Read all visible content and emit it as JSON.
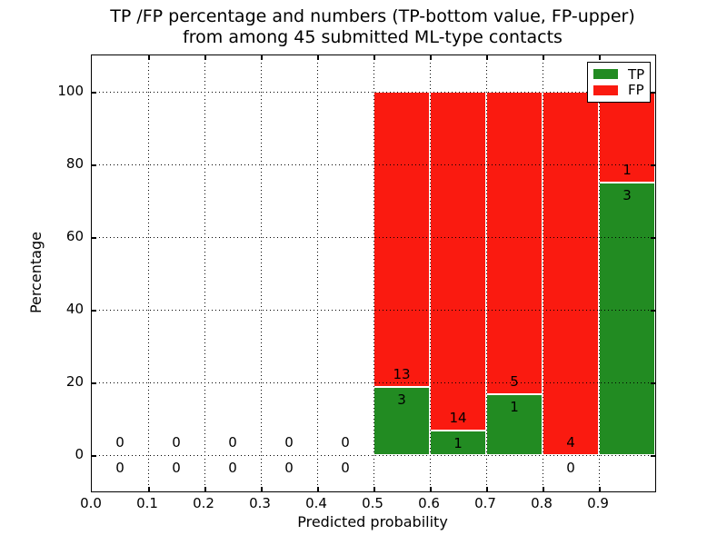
{
  "figure": {
    "title_line1": "TP /FP percentage and numbers (TP-bottom value, FP-upper)",
    "title_line2": "from among 45 submitted ML-type contacts",
    "background": "#ffffff"
  },
  "chart_data": {
    "type": "bar",
    "stacked": true,
    "normalized_to_percent": true,
    "title": "TP /FP percentage and numbers (TP-bottom value, FP-upper)\nfrom among 45 submitted ML-type contacts",
    "xlabel": "Predicted probability",
    "ylabel": "Percentage",
    "xlim": [
      0.0,
      1.0
    ],
    "ylim": [
      -10,
      110
    ],
    "xticks": [
      "0.0",
      "0.1",
      "0.2",
      "0.3",
      "0.4",
      "0.5",
      "0.6",
      "0.7",
      "0.8",
      "0.9"
    ],
    "yticks": [
      "0",
      "20",
      "40",
      "60",
      "80",
      "100"
    ],
    "grid": "dotted black, horizontal at y ticks and vertical at x ticks",
    "total_contacts": 45,
    "bin_width": 0.1,
    "bins": [
      {
        "x_range": [
          0.0,
          0.1
        ],
        "tp": 0,
        "fp": 0,
        "tp_pct": 0
      },
      {
        "x_range": [
          0.1,
          0.2
        ],
        "tp": 0,
        "fp": 0,
        "tp_pct": 0
      },
      {
        "x_range": [
          0.2,
          0.3
        ],
        "tp": 0,
        "fp": 0,
        "tp_pct": 0
      },
      {
        "x_range": [
          0.3,
          0.4
        ],
        "tp": 0,
        "fp": 0,
        "tp_pct": 0
      },
      {
        "x_range": [
          0.4,
          0.5
        ],
        "tp": 0,
        "fp": 0,
        "tp_pct": 0
      },
      {
        "x_range": [
          0.5,
          0.6
        ],
        "tp": 3,
        "fp": 13,
        "tp_pct": 18.75
      },
      {
        "x_range": [
          0.6,
          0.7
        ],
        "tp": 1,
        "fp": 14,
        "tp_pct": 6.67
      },
      {
        "x_range": [
          0.7,
          0.8
        ],
        "tp": 1,
        "fp": 5,
        "tp_pct": 16.67
      },
      {
        "x_range": [
          0.8,
          0.9
        ],
        "tp": 0,
        "fp": 4,
        "tp_pct": 0
      },
      {
        "x_range": [
          0.9,
          1.0
        ],
        "tp": 3,
        "fp": 1,
        "tp_pct": 75
      }
    ],
    "legend": {
      "position": "upper right",
      "entries": [
        {
          "label": "TP",
          "color": "#228b22"
        },
        {
          "label": "FP",
          "color": "#fa1a10"
        }
      ]
    },
    "colors": {
      "tp": "#228b22",
      "fp": "#fa1a10",
      "bar_edge": "#ffffff",
      "grid": "#000000",
      "text": "#000000"
    }
  }
}
